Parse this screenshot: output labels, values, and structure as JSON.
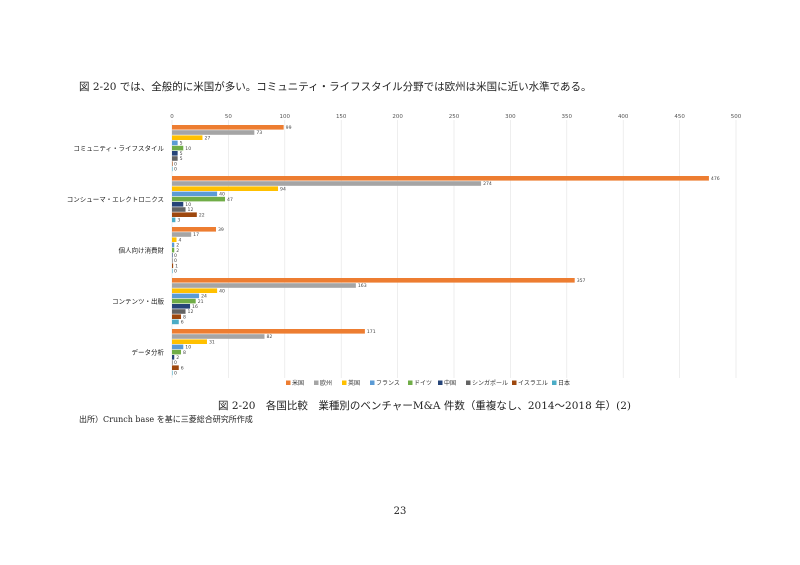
{
  "intro_text": "図 2-20 では、全般的に米国が多い。コミュニティ・ライフスタイル分野では欧州は米国に近い水準である。",
  "caption": "図 2-20　各国比較　業種別のベンチャーM&A 件数（重複なし、2014～2018 年）(2)",
  "source": "出所）Crunch base を基に三菱総合研究所作成",
  "page_number": "23",
  "chart_data": {
    "type": "bar",
    "orientation": "horizontal",
    "title": "",
    "xlabel": "",
    "ylabel": "",
    "xlim": [
      0,
      500
    ],
    "x_ticks": [
      0,
      50,
      100,
      150,
      200,
      250,
      300,
      350,
      400,
      450,
      500
    ],
    "x_axis_position": "top",
    "grid": true,
    "legend_position": "bottom",
    "categories": [
      "コミュニティ・ライフスタイル",
      "コンシューマ・エレクトロニクス",
      "個人向け消費財",
      "コンテンツ・出版",
      "データ分析"
    ],
    "series": [
      {
        "name": "米国",
        "color": "#ed7d31",
        "values": [
          99,
          476,
          39,
          357,
          171
        ]
      },
      {
        "name": "欧州",
        "color": "#a5a5a5",
        "values": [
          73,
          274,
          17,
          163,
          82
        ]
      },
      {
        "name": "英国",
        "color": "#ffc000",
        "values": [
          27,
          94,
          4,
          40,
          31
        ]
      },
      {
        "name": "フランス",
        "color": "#5b9bd5",
        "values": [
          5,
          40,
          2,
          24,
          10
        ]
      },
      {
        "name": "ドイツ",
        "color": "#70ad47",
        "values": [
          10,
          47,
          2,
          21,
          8
        ]
      },
      {
        "name": "中国",
        "color": "#264478",
        "values": [
          5,
          10,
          0,
          16,
          2
        ]
      },
      {
        "name": "シンガポール",
        "color": "#636363",
        "values": [
          5,
          12,
          0,
          12,
          0
        ]
      },
      {
        "name": "イスラエル",
        "color": "#9e480e",
        "values": [
          0,
          22,
          1,
          8,
          6
        ]
      },
      {
        "name": "日本",
        "color": "#4bacc6",
        "values": [
          0,
          3,
          0,
          6,
          0
        ]
      }
    ]
  }
}
